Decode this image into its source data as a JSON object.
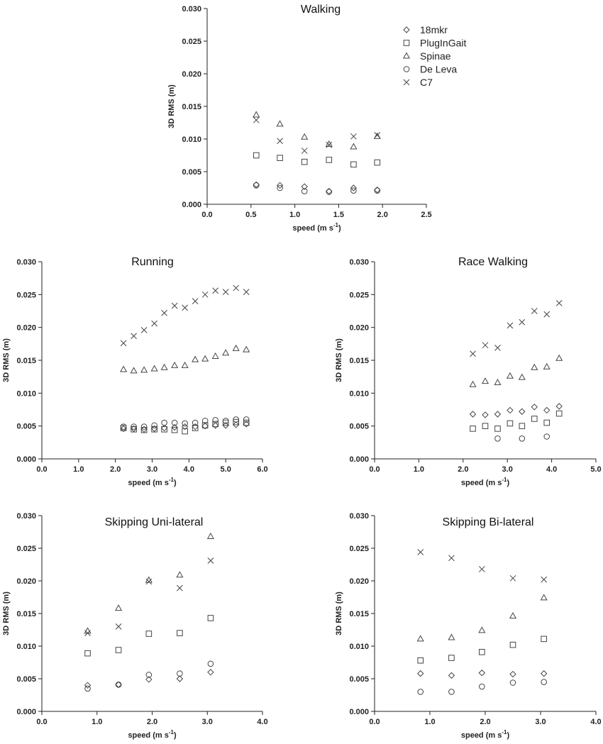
{
  "chart_data": [
    {
      "type": "scatter",
      "title": "Walking",
      "xlabel": "speed (m s",
      "xlabel_sup": "-1",
      "ylabel": "3D RMS (m)",
      "xlim": [
        0,
        2.5
      ],
      "ylim": [
        0,
        0.03
      ],
      "xticks": [
        "0.0",
        "0.5",
        "1.0",
        "1.5",
        "2.0",
        "2.5"
      ],
      "yticks": [
        "0.000",
        "0.005",
        "0.010",
        "0.015",
        "0.020",
        "0.025",
        "0.030"
      ],
      "legend": [
        "18mkr",
        "PlugInGait",
        "Spinae",
        "De Leva",
        "C7"
      ],
      "series": [
        {
          "name": "18mkr",
          "marker": "diamond",
          "x": [
            0.56,
            0.83,
            1.11,
            1.39,
            1.67,
            1.94
          ],
          "y": [
            0.003,
            0.0029,
            0.0027,
            0.002,
            0.0025,
            0.0022
          ]
        },
        {
          "name": "PlugInGait",
          "marker": "square",
          "x": [
            0.56,
            0.83,
            1.11,
            1.39,
            1.67,
            1.94
          ],
          "y": [
            0.0075,
            0.0071,
            0.0065,
            0.0068,
            0.0061,
            0.0064
          ]
        },
        {
          "name": "Spinae",
          "marker": "triangle",
          "x": [
            0.56,
            0.83,
            1.11,
            1.39,
            1.67,
            1.94
          ],
          "y": [
            0.0137,
            0.0123,
            0.0103,
            0.0092,
            0.0088,
            0.0104
          ]
        },
        {
          "name": "De Leva",
          "marker": "circle",
          "x": [
            0.56,
            0.83,
            1.11,
            1.39,
            1.67,
            1.94
          ],
          "y": [
            0.0029,
            0.0025,
            0.002,
            0.0019,
            0.0021,
            0.0021
          ]
        },
        {
          "name": "C7",
          "marker": "cross",
          "x": [
            0.56,
            0.83,
            1.11,
            1.39,
            1.67,
            1.94
          ],
          "y": [
            0.0129,
            0.0097,
            0.0082,
            0.0091,
            0.0104,
            0.0106
          ]
        }
      ]
    },
    {
      "type": "scatter",
      "title": "Running",
      "xlabel": "speed (m s",
      "xlabel_sup": "-1",
      "ylabel": "3D RMS (m)",
      "xlim": [
        0,
        6
      ],
      "ylim": [
        0,
        0.03
      ],
      "xticks": [
        "0.0",
        "1.0",
        "2.0",
        "3.0",
        "4.0",
        "5.0",
        "6.0"
      ],
      "yticks": [
        "0.000",
        "0.005",
        "0.010",
        "0.015",
        "0.020",
        "0.025",
        "0.030"
      ],
      "series": [
        {
          "name": "18mkr",
          "marker": "diamond",
          "x": [
            2.22,
            2.5,
            2.78,
            3.06,
            3.33,
            3.61,
            3.89,
            4.17,
            4.44,
            4.72,
            5.0,
            5.28,
            5.56
          ],
          "y": [
            0.0046,
            0.0046,
            0.0045,
            0.0046,
            0.0047,
            0.0048,
            0.0049,
            0.0049,
            0.005,
            0.0051,
            0.0051,
            0.0052,
            0.0053
          ]
        },
        {
          "name": "PlugInGait",
          "marker": "square",
          "x": [
            2.22,
            2.5,
            2.78,
            3.06,
            3.33,
            3.61,
            3.89,
            4.17,
            4.44,
            4.72,
            5.0,
            5.28,
            5.56
          ],
          "y": [
            0.0047,
            0.0045,
            0.0044,
            0.0045,
            0.0045,
            0.0044,
            0.0042,
            0.0047,
            0.0051,
            0.0053,
            0.0055,
            0.0056,
            0.0055
          ]
        },
        {
          "name": "Spinae",
          "marker": "triangle",
          "x": [
            2.22,
            2.5,
            2.78,
            3.06,
            3.33,
            3.61,
            3.89,
            4.17,
            4.44,
            4.72,
            5.0,
            5.28,
            5.56
          ],
          "y": [
            0.0136,
            0.0134,
            0.0135,
            0.0137,
            0.0139,
            0.0142,
            0.0142,
            0.0151,
            0.0152,
            0.0156,
            0.0161,
            0.0168,
            0.0166
          ]
        },
        {
          "name": "De Leva",
          "marker": "circle",
          "x": [
            2.22,
            2.5,
            2.78,
            3.06,
            3.33,
            3.61,
            3.89,
            4.17,
            4.44,
            4.72,
            5.0,
            5.28,
            5.56
          ],
          "y": [
            0.0049,
            0.0049,
            0.0049,
            0.0051,
            0.0055,
            0.0055,
            0.0054,
            0.0055,
            0.0058,
            0.0059,
            0.0058,
            0.006,
            0.006
          ]
        },
        {
          "name": "C7",
          "marker": "cross",
          "x": [
            2.22,
            2.5,
            2.78,
            3.06,
            3.33,
            3.61,
            3.89,
            4.17,
            4.44,
            4.72,
            5.0,
            5.28,
            5.56
          ],
          "y": [
            0.0176,
            0.0187,
            0.0196,
            0.0206,
            0.0222,
            0.0233,
            0.023,
            0.024,
            0.025,
            0.0256,
            0.0254,
            0.026,
            0.0254
          ]
        }
      ]
    },
    {
      "type": "scatter",
      "title": "Race Walking",
      "xlabel": "speed (m s",
      "xlabel_sup": "-1",
      "ylabel": "3D RMS (m)",
      "xlim": [
        0,
        5
      ],
      "ylim": [
        0,
        0.03
      ],
      "xticks": [
        "0.0",
        "1.0",
        "2.0",
        "3.0",
        "4.0",
        "5.0"
      ],
      "yticks": [
        "0.000",
        "0.005",
        "0.010",
        "0.015",
        "0.020",
        "0.025",
        "0.030"
      ],
      "series": [
        {
          "name": "18mkr",
          "marker": "diamond",
          "x": [
            2.22,
            2.5,
            2.78,
            3.06,
            3.33,
            3.61,
            3.89,
            4.17
          ],
          "y": [
            0.0068,
            0.0067,
            0.0068,
            0.0074,
            0.0072,
            0.0079,
            0.0074,
            0.008
          ]
        },
        {
          "name": "PlugInGait",
          "marker": "square",
          "x": [
            2.22,
            2.5,
            2.78,
            3.06,
            3.33,
            3.61,
            3.89,
            4.17
          ],
          "y": [
            0.0046,
            0.005,
            0.0046,
            0.0054,
            0.005,
            0.0061,
            0.0055,
            0.0069
          ]
        },
        {
          "name": "Spinae",
          "marker": "triangle",
          "x": [
            2.22,
            2.5,
            2.78,
            3.06,
            3.33,
            3.61,
            3.89,
            4.17
          ],
          "y": [
            0.0113,
            0.0118,
            0.0116,
            0.0126,
            0.0124,
            0.0139,
            0.014,
            0.0153
          ]
        },
        {
          "name": "De Leva",
          "marker": "circle",
          "x": [
            2.78,
            3.33,
            3.89
          ],
          "y": [
            0.0031,
            0.0031,
            0.0034
          ]
        },
        {
          "name": "C7",
          "marker": "cross",
          "x": [
            2.22,
            2.5,
            2.78,
            3.06,
            3.33,
            3.61,
            3.89,
            4.17
          ],
          "y": [
            0.016,
            0.0173,
            0.0169,
            0.0203,
            0.0208,
            0.0225,
            0.022,
            0.0237
          ]
        }
      ]
    },
    {
      "type": "scatter",
      "title": "Skipping Uni-lateral",
      "xlabel": "speed (m s",
      "xlabel_sup": "-1",
      "ylabel": "3D RMS (m)",
      "xlim": [
        0,
        4
      ],
      "ylim": [
        0,
        0.03
      ],
      "xticks": [
        "0.0",
        "1.0",
        "2.0",
        "3.0",
        "4.0"
      ],
      "yticks": [
        "0.000",
        "0.005",
        "0.010",
        "0.015",
        "0.020",
        "0.025",
        "0.030"
      ],
      "series": [
        {
          "name": "18mkr",
          "marker": "diamond",
          "x": [
            0.83,
            1.39,
            1.94,
            2.5,
            3.06
          ],
          "y": [
            0.004,
            0.0041,
            0.0049,
            0.005,
            0.006
          ]
        },
        {
          "name": "PlugInGait",
          "marker": "square",
          "x": [
            0.83,
            1.39,
            1.94,
            2.5,
            3.06
          ],
          "y": [
            0.0089,
            0.0094,
            0.0119,
            0.012,
            0.0143
          ]
        },
        {
          "name": "Spinae",
          "marker": "triangle",
          "x": [
            0.83,
            1.39,
            1.94,
            2.5,
            3.06
          ],
          "y": [
            0.0123,
            0.0158,
            0.0201,
            0.0209,
            0.0268
          ]
        },
        {
          "name": "De Leva",
          "marker": "circle",
          "x": [
            0.83,
            1.39,
            1.94,
            2.5,
            3.06
          ],
          "y": [
            0.0035,
            0.0041,
            0.0056,
            0.0058,
            0.0073
          ]
        },
        {
          "name": "C7",
          "marker": "cross",
          "x": [
            0.83,
            1.39,
            1.94,
            2.5,
            3.06
          ],
          "y": [
            0.012,
            0.013,
            0.0199,
            0.0189,
            0.0231
          ]
        }
      ]
    },
    {
      "type": "scatter",
      "title": "Skipping Bi-lateral",
      "xlabel": "speed (m s",
      "xlabel_sup": "-1",
      "ylabel": "3D RMS (m)",
      "xlim": [
        0,
        4
      ],
      "ylim": [
        0,
        0.03
      ],
      "xticks": [
        "0.0",
        "1.0",
        "2.0",
        "3.0",
        "4.0"
      ],
      "yticks": [
        "0.000",
        "0.005",
        "0.010",
        "0.015",
        "0.020",
        "0.025",
        "0.030"
      ],
      "series": [
        {
          "name": "18mkr",
          "marker": "diamond",
          "x": [
            0.83,
            1.39,
            1.94,
            2.5,
            3.06
          ],
          "y": [
            0.0058,
            0.0055,
            0.0059,
            0.0057,
            0.0058
          ]
        },
        {
          "name": "PlugInGait",
          "marker": "square",
          "x": [
            0.83,
            1.39,
            1.94,
            2.5,
            3.06
          ],
          "y": [
            0.0078,
            0.0082,
            0.0091,
            0.0102,
            0.0111
          ]
        },
        {
          "name": "Spinae",
          "marker": "triangle",
          "x": [
            0.83,
            1.39,
            1.94,
            2.5,
            3.06
          ],
          "y": [
            0.0111,
            0.0113,
            0.0124,
            0.0146,
            0.0174
          ]
        },
        {
          "name": "De Leva",
          "marker": "circle",
          "x": [
            0.83,
            1.39,
            1.94,
            2.5,
            3.06
          ],
          "y": [
            0.003,
            0.003,
            0.0038,
            0.0044,
            0.0045
          ]
        },
        {
          "name": "C7",
          "marker": "cross",
          "x": [
            0.83,
            1.39,
            1.94,
            2.5,
            3.06
          ],
          "y": [
            0.0244,
            0.0235,
            0.0218,
            0.0204,
            0.0202
          ]
        }
      ]
    }
  ]
}
